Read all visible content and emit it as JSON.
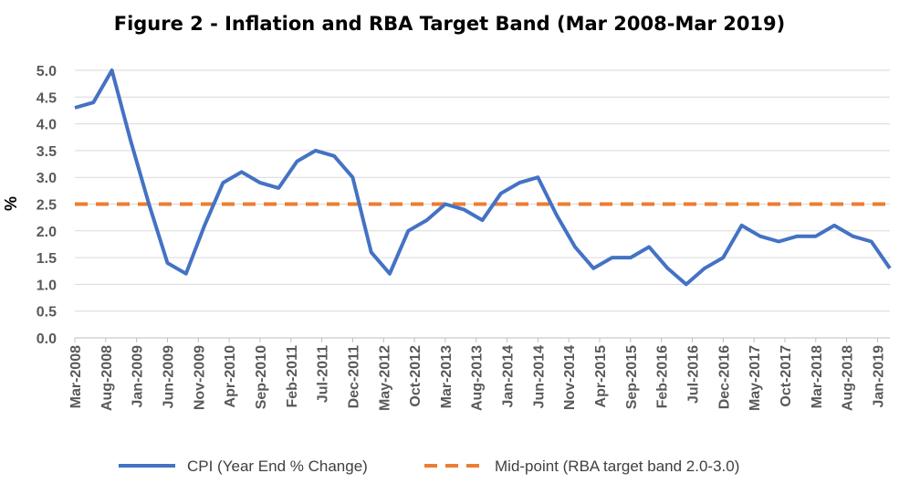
{
  "chart_data": {
    "type": "line",
    "title": "Figure 2 - Inflation and RBA Target Band (Mar 2008-Mar 2019)",
    "ylabel": "%",
    "xlabel": "",
    "ylim": [
      0,
      5
    ],
    "yticks": [
      "0.0",
      "0.5",
      "1.0",
      "1.5",
      "2.0",
      "2.5",
      "3.0",
      "3.5",
      "4.0",
      "4.5",
      "5.0"
    ],
    "x": [
      "Mar-2008",
      "Jun-2008",
      "Sep-2008",
      "Dec-2008",
      "Mar-2009",
      "Jun-2009",
      "Sep-2009",
      "Dec-2009",
      "Mar-2010",
      "Jun-2010",
      "Sep-2010",
      "Dec-2010",
      "Mar-2011",
      "Jun-2011",
      "Sep-2011",
      "Dec-2011",
      "Mar-2012",
      "Jun-2012",
      "Sep-2012",
      "Dec-2012",
      "Mar-2013",
      "Jun-2013",
      "Sep-2013",
      "Dec-2013",
      "Mar-2014",
      "Jun-2014",
      "Sep-2014",
      "Dec-2014",
      "Mar-2015",
      "Jun-2015",
      "Sep-2015",
      "Dec-2015",
      "Mar-2016",
      "Jun-2016",
      "Sep-2016",
      "Dec-2016",
      "Mar-2017",
      "Jun-2017",
      "Sep-2017",
      "Dec-2017",
      "Mar-2018",
      "Jun-2018",
      "Sep-2018",
      "Dec-2018",
      "Mar-2019"
    ],
    "xtick_labels": [
      "Mar-2008",
      "Aug-2008",
      "Jan-2009",
      "Jun-2009",
      "Nov-2009",
      "Apr-2010",
      "Sep-2010",
      "Feb-2011",
      "Jul-2011",
      "Dec-2011",
      "May-2012",
      "Oct-2012",
      "Mar-2013",
      "Aug-2013",
      "Jan-2014",
      "Jun-2014",
      "Nov-2014",
      "Apr-2015",
      "Sep-2015",
      "Feb-2016",
      "Jul-2016",
      "Dec-2016",
      "May-2017",
      "Oct-2017",
      "Mar-2018",
      "Aug-2018",
      "Jan-2019"
    ],
    "series": [
      {
        "name": "CPI (Year End % Change)",
        "color": "#4472c4",
        "style": "solid",
        "values": [
          4.3,
          4.4,
          5.0,
          3.7,
          2.5,
          1.4,
          1.2,
          2.1,
          2.9,
          3.1,
          2.9,
          2.8,
          3.3,
          3.5,
          3.4,
          3.0,
          1.6,
          1.2,
          2.0,
          2.2,
          2.5,
          2.4,
          2.2,
          2.7,
          2.9,
          3.0,
          2.3,
          1.7,
          1.3,
          1.5,
          1.5,
          1.7,
          1.3,
          1.0,
          1.3,
          1.5,
          2.1,
          1.9,
          1.8,
          1.9,
          1.9,
          2.1,
          1.9,
          1.8,
          1.3
        ]
      },
      {
        "name": "Mid-point (RBA target band 2.0-3.0)",
        "color": "#ed7d31",
        "style": "dashed",
        "values": [
          2.5,
          2.5,
          2.5,
          2.5,
          2.5,
          2.5,
          2.5,
          2.5,
          2.5,
          2.5,
          2.5,
          2.5,
          2.5,
          2.5,
          2.5,
          2.5,
          2.5,
          2.5,
          2.5,
          2.5,
          2.5,
          2.5,
          2.5,
          2.5,
          2.5,
          2.5,
          2.5,
          2.5,
          2.5,
          2.5,
          2.5,
          2.5,
          2.5,
          2.5,
          2.5,
          2.5,
          2.5,
          2.5,
          2.5,
          2.5,
          2.5,
          2.5,
          2.5,
          2.5,
          2.5
        ]
      }
    ],
    "grid": true,
    "legend": "bottom"
  }
}
